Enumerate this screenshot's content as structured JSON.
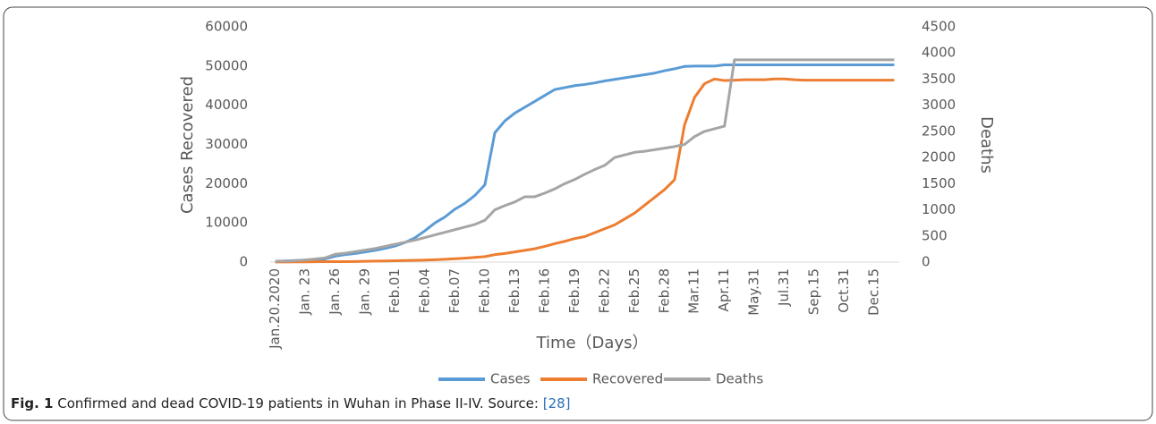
{
  "chart_data": {
    "type": "line",
    "categories": [
      "Jan.20.2020",
      null,
      null,
      "Jan. 23",
      null,
      null,
      "Jan. 26",
      null,
      null,
      "Jan. 29",
      null,
      null,
      "Feb.01",
      null,
      null,
      "Feb.04",
      null,
      null,
      "Feb.07",
      null,
      null,
      "Feb.10",
      null,
      null,
      "Feb.13",
      null,
      null,
      "Feb.16",
      null,
      null,
      "Feb.19",
      null,
      null,
      "Feb.22",
      null,
      null,
      "Feb.25",
      null,
      null,
      "Feb.28",
      null,
      null,
      "Mar.11",
      null,
      null,
      "Apr.11",
      null,
      null,
      "May.31",
      null,
      null,
      "Jul.31",
      null,
      null,
      "Sep.15",
      null,
      null,
      "Oct.31",
      null,
      null,
      "Dec.15",
      null,
      null
    ],
    "series": [
      {
        "name": "Cases",
        "color": "#5b9bd5",
        "values": [
          200,
          300,
          400,
          500,
          600,
          800,
          1500,
          1900,
          2200,
          2600,
          3000,
          3500,
          4100,
          5000,
          6200,
          8000,
          10000,
          11500,
          13500,
          15000,
          17000,
          19700,
          33000,
          36000,
          38000,
          39500,
          41000,
          42500,
          44000,
          44500,
          45000,
          45300,
          45700,
          46200,
          46600,
          47000,
          47400,
          47800,
          48200,
          48800,
          49300,
          49900,
          50000,
          50000,
          50000,
          50300,
          50300,
          50300,
          50300,
          50300,
          50300,
          50300,
          50300,
          50300,
          50300,
          50300,
          50300,
          50300,
          50300,
          50300,
          50300,
          50300,
          50300
        ]
      },
      {
        "name": "Recovered",
        "color": "#ed7d31",
        "values": [
          30,
          40,
          50,
          60,
          80,
          100,
          100,
          120,
          150,
          200,
          250,
          300,
          350,
          400,
          450,
          500,
          600,
          700,
          850,
          1000,
          1200,
          1400,
          1900,
          2200,
          2600,
          3000,
          3400,
          4000,
          4700,
          5300,
          6000,
          6500,
          7500,
          8500,
          9500,
          11000,
          12500,
          14500,
          16500,
          18500,
          21000,
          35000,
          42000,
          45500,
          46700,
          46300,
          46400,
          46500,
          46500,
          46500,
          46700,
          46700,
          46500,
          46400,
          46400,
          46400,
          46400,
          46400,
          46400,
          46400,
          46400,
          46400,
          46400
        ]
      },
      {
        "name": "Deaths",
        "color": "#a5a5a5",
        "axis": "y2",
        "values": [
          17,
          20,
          25,
          40,
          60,
          80,
          150,
          170,
          200,
          230,
          260,
          300,
          340,
          380,
          420,
          470,
          520,
          570,
          620,
          670,
          720,
          800,
          1000,
          1080,
          1150,
          1250,
          1250,
          1320,
          1400,
          1500,
          1580,
          1680,
          1770,
          1850,
          2000,
          2050,
          2100,
          2120,
          2150,
          2180,
          2210,
          2250,
          2400,
          2500,
          2550,
          2600,
          3870,
          3870,
          3870,
          3870,
          3870,
          3870,
          3870,
          3870,
          3870,
          3870,
          3870,
          3870,
          3870,
          3870,
          3870,
          3870,
          3870
        ]
      }
    ],
    "ylabel": "Cases Recovered",
    "y2label": "Deaths",
    "xlabel": "Time（Days）",
    "ylim": [
      0,
      60000
    ],
    "yticks": [
      0,
      10000,
      20000,
      30000,
      40000,
      50000,
      60000
    ],
    "y2lim": [
      0,
      4500
    ],
    "y2ticks": [
      0,
      500,
      1000,
      1500,
      2000,
      2500,
      3000,
      3500,
      4000,
      4500
    ],
    "grid": false,
    "legend": "bottom"
  },
  "figure": {
    "label": "Fig. 1",
    "caption": "Confirmed and dead COVID-19 patients in Wuhan in Phase II-IV. Source: ",
    "ref": "[28]"
  }
}
